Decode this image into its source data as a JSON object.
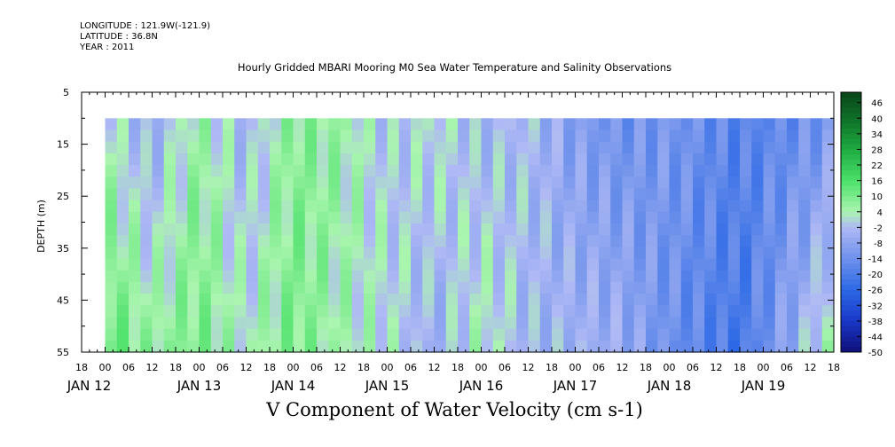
{
  "meta": {
    "longitude": "LONGITUDE : 121.9W(-121.9)",
    "latitude": "LATITUDE : 36.8N",
    "year": "YEAR : 2011"
  },
  "title": "Hourly Gridded MBARI Mooring M0 Sea Water Temperature and Salinity Observations",
  "variable_title": "V Component of Water Velocity (cm s-1)",
  "chart_data": {
    "type": "heatmap",
    "title": "Hourly Gridded MBARI Mooring M0 Sea Water Temperature and Salinity Observations",
    "xlabel": "V Component of Water Velocity (cm s-1)",
    "ylabel": "DEPTH (m)",
    "y_reversed": true,
    "ylim": [
      5,
      55
    ],
    "y_ticks": [
      5,
      15,
      25,
      35,
      45,
      55
    ],
    "data_depth_range": [
      10,
      55
    ],
    "time_range": [
      "2011-01-11T18:00",
      "2011-01-19T18:00"
    ],
    "data_time_range": [
      "2011-01-12T00:00",
      "2011-01-19T18:00"
    ],
    "x_tick_hours": [
      "18",
      "00",
      "06",
      "12",
      "18",
      "00",
      "06",
      "12",
      "18",
      "00",
      "06",
      "12",
      "18",
      "00",
      "06",
      "12",
      "18",
      "00",
      "06",
      "12",
      "18",
      "00",
      "06",
      "12",
      "18",
      "00",
      "06",
      "12",
      "18",
      "00",
      "06",
      "12",
      "18"
    ],
    "x_day_labels": [
      "JAN 12",
      "JAN 13",
      "JAN 14",
      "JAN 15",
      "JAN 16",
      "JAN 17",
      "JAN 18",
      "JAN 19"
    ],
    "colorbar": {
      "range": [
        -50,
        50
      ],
      "labels": [
        "46",
        "40",
        "34",
        "28",
        "22",
        "16",
        "10",
        "4",
        "-2",
        "-8",
        "-14",
        "-20",
        "-26",
        "-32",
        "-38",
        "-44",
        "-50"
      ]
    },
    "approx_v_by_time": [
      {
        "time": "2011-01-12T00:00",
        "surface": 2,
        "bottom": 14
      },
      {
        "time": "2011-01-12T12:00",
        "surface": -6,
        "bottom": 6
      },
      {
        "time": "2011-01-13T00:00",
        "surface": 6,
        "bottom": 10
      },
      {
        "time": "2011-01-13T12:00",
        "surface": -4,
        "bottom": 2
      },
      {
        "time": "2011-01-14T00:00",
        "surface": 8,
        "bottom": 10
      },
      {
        "time": "2011-01-14T12:00",
        "surface": 6,
        "bottom": 4
      },
      {
        "time": "2011-01-15T00:00",
        "surface": -2,
        "bottom": 2
      },
      {
        "time": "2011-01-15T12:00",
        "surface": 2,
        "bottom": -6
      },
      {
        "time": "2011-01-16T00:00",
        "surface": -4,
        "bottom": 4
      },
      {
        "time": "2011-01-16T12:00",
        "surface": -2,
        "bottom": -4
      },
      {
        "time": "2011-01-17T00:00",
        "surface": -10,
        "bottom": -4
      },
      {
        "time": "2011-01-17T12:00",
        "surface": -14,
        "bottom": -6
      },
      {
        "time": "2011-01-18T00:00",
        "surface": -12,
        "bottom": -14
      },
      {
        "time": "2011-01-18T18:00",
        "surface": -18,
        "bottom": -22
      },
      {
        "time": "2011-01-19T06:00",
        "surface": -16,
        "bottom": -8
      },
      {
        "time": "2011-01-19T18:00",
        "surface": -12,
        "bottom": 6
      }
    ]
  }
}
